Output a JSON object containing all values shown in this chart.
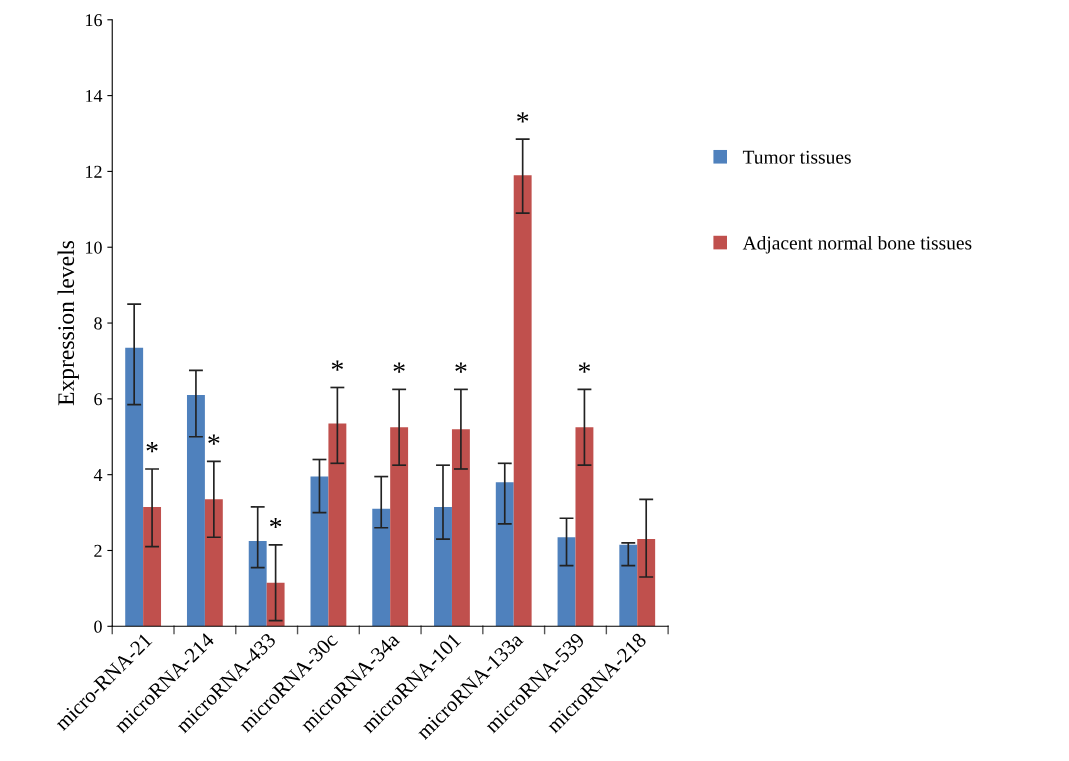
{
  "chart_data": {
    "type": "bar",
    "ylabel": "Expression levels",
    "categories": [
      "micro-RNA-21",
      "microRNA-214",
      "microRNA-433",
      "microRNA-30c",
      "microRNA-34a",
      "microRNA-101",
      "microRNA-133a",
      "microRNA-539",
      "microRNA-218"
    ],
    "series": [
      {
        "name": "Tumor tissues",
        "color": "#4f81bd",
        "values": [
          7.35,
          6.1,
          2.25,
          3.95,
          3.1,
          3.15,
          3.8,
          2.35,
          2.15
        ],
        "errors": [
          [
            5.85,
            8.5
          ],
          [
            5.0,
            6.75
          ],
          [
            1.55,
            3.15
          ],
          [
            3.0,
            4.4
          ],
          [
            2.6,
            3.95
          ],
          [
            2.3,
            4.25
          ],
          [
            2.7,
            4.3
          ],
          [
            1.6,
            2.85
          ],
          [
            1.6,
            2.2
          ]
        ]
      },
      {
        "name": "Adjacent normal bone tissues",
        "color": "#c0504d",
        "values": [
          3.15,
          3.35,
          1.15,
          5.35,
          5.25,
          5.2,
          11.9,
          5.25,
          2.3
        ],
        "errors": [
          [
            2.1,
            4.15
          ],
          [
            2.35,
            4.35
          ],
          [
            0.15,
            2.15
          ],
          [
            4.3,
            6.3
          ],
          [
            4.25,
            6.25
          ],
          [
            4.15,
            6.25
          ],
          [
            10.9,
            12.85
          ],
          [
            4.25,
            6.25
          ],
          [
            1.3,
            3.35
          ]
        ]
      }
    ],
    "annotations": [
      {
        "text": "*",
        "x": "micro-RNA-21",
        "y": 3.15
      },
      {
        "text": "*",
        "x": "microRNA-214",
        "y": 3.35
      },
      {
        "text": "*",
        "x": "microRNA-433",
        "y": 1.15
      },
      {
        "text": "*",
        "x": "microRNA-30c",
        "y": 5.35
      },
      {
        "text": "*",
        "x": "microRNA-34a",
        "y": 5.25
      },
      {
        "text": "*",
        "x": "microRNA-101",
        "y": 5.2
      },
      {
        "text": "*",
        "x": "microRNA-133a",
        "y": 11.9
      },
      {
        "text": "*",
        "x": "microRNA-539",
        "y": 5.25
      }
    ],
    "ylim": [
      0,
      16
    ],
    "yticks": [
      0,
      2,
      4,
      6,
      8,
      10,
      12,
      14,
      16
    ],
    "grid": false,
    "legend": "right"
  }
}
